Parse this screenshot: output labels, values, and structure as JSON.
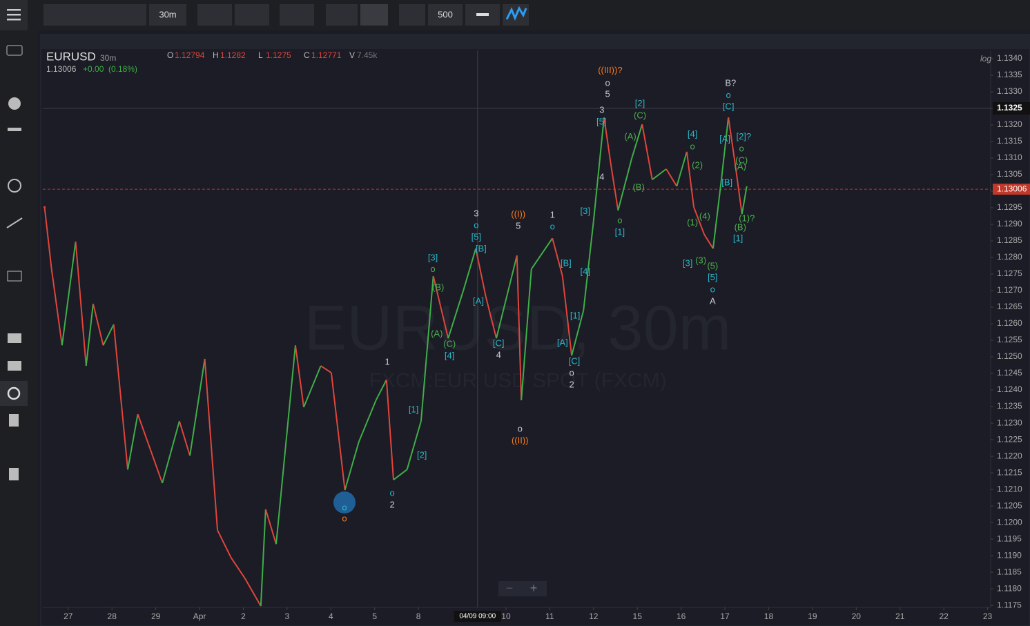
{
  "toolbar": {
    "interval": "30m",
    "bars": "500"
  },
  "chart_data": {
    "type": "line",
    "symbol": "EURUSD",
    "interval": "30m",
    "last_header": "1.13006",
    "change": "+0.00",
    "change_pct": "(0.18%)",
    "ohlcv": [
      {
        "key": "O",
        "value": "1.12794"
      },
      {
        "key": "H",
        "value": "1.1282"
      },
      {
        "key": "L",
        "value": "1.1275"
      },
      {
        "key": "C",
        "value": "1.12771"
      },
      {
        "key": "V",
        "value": "7.45k"
      }
    ],
    "watermark": "EURUSD, 30m",
    "watermark_sub": "FXCM:EUR USD SPOT (FXCM)",
    "scale_label": "log",
    "up_color": "#3fae49",
    "down_color": "#e0453c",
    "xlim": [
      -0.58,
      21.07
    ],
    "ylim": [
      1.11744,
      1.13425
    ],
    "xticks": [
      {
        "value": 0,
        "label": "27"
      },
      {
        "value": 1,
        "label": "28"
      },
      {
        "value": 2,
        "label": "29"
      },
      {
        "value": 3,
        "label": "Apr"
      },
      {
        "value": 4,
        "label": "2"
      },
      {
        "value": 5,
        "label": "3"
      },
      {
        "value": 6,
        "label": "4"
      },
      {
        "value": 7,
        "label": "5"
      },
      {
        "value": 8,
        "label": "8"
      },
      {
        "value": 10,
        "label": "10"
      },
      {
        "value": 11,
        "label": "11"
      },
      {
        "value": 12,
        "label": "12"
      },
      {
        "value": 13,
        "label": "15"
      },
      {
        "value": 14,
        "label": "16"
      },
      {
        "value": 15,
        "label": "17"
      },
      {
        "value": 16,
        "label": "18"
      },
      {
        "value": 17,
        "label": "19"
      },
      {
        "value": 18,
        "label": "20"
      },
      {
        "value": 19,
        "label": "21"
      },
      {
        "value": 20,
        "label": "22"
      },
      {
        "value": 21,
        "label": "23"
      }
    ],
    "yticks": [
      {
        "value": 1.134,
        "label": "1.1340"
      },
      1.1335,
      {
        "value": 1.133,
        "label": "1.1330"
      },
      1.1325,
      {
        "value": 1.132,
        "label": "1.1320"
      },
      1.1315,
      {
        "value": 1.131,
        "label": "1.1310"
      },
      1.1305,
      {
        "value": 1.13,
        "label": "1.1300"
      },
      1.1295,
      {
        "value": 1.129,
        "label": "1.1290"
      },
      1.1285,
      {
        "value": 1.128,
        "label": "1.1280"
      },
      1.1275,
      {
        "value": 1.127,
        "label": "1.1270"
      },
      1.1265,
      {
        "value": 1.126,
        "label": "1.1260"
      },
      1.1255,
      {
        "value": 1.125,
        "label": "1.1250"
      },
      1.1245,
      {
        "value": 1.124,
        "label": "1.1240"
      },
      1.1235,
      {
        "value": 1.123,
        "label": "1.1230"
      },
      1.1225,
      {
        "value": 1.122,
        "label": "1.1220"
      },
      1.1215,
      {
        "value": 1.121,
        "label": "1.1210"
      },
      1.1205,
      {
        "value": 1.12,
        "label": "1.1200"
      },
      1.1195,
      {
        "value": 1.119,
        "label": "1.1190"
      },
      1.1185,
      {
        "value": 1.118,
        "label": "1.1180"
      },
      1.1175
    ],
    "crosshair": {
      "x": 9.35,
      "x_label": "04/09 09:00",
      "y": {
        "value": 1.1325,
        "label": "1.1325"
      }
    },
    "last_price": 1.13006,
    "price": {
      "x": [
        -0.54,
        -0.38,
        -0.14,
        0.17,
        0.41,
        0.57,
        0.8,
        1.04,
        1.36,
        1.59,
        2.15,
        2.54,
        2.78,
        3.12,
        3.41,
        3.72,
        4.04,
        4.4,
        4.51,
        4.75,
        5.19,
        5.38,
        5.77,
        6.01,
        6.32,
        6.64,
        7.03,
        7.27,
        7.43,
        7.74,
        8.06,
        8.34,
        8.68,
        9.03,
        9.31,
        9.54,
        9.78,
        10.25,
        10.35,
        10.58,
        11.06,
        11.29,
        11.5,
        11.77,
        12.0,
        12.24,
        12.4,
        12.56,
        12.87,
        13.11,
        13.34,
        13.66,
        13.9,
        14.13,
        14.29,
        14.53,
        14.73,
        14.92,
        15.08,
        15.24,
        15.39,
        15.5
      ],
      "close": [
        1.12952,
        1.12765,
        1.12535,
        1.12848,
        1.12473,
        1.1266,
        1.12535,
        1.12598,
        1.1216,
        1.12327,
        1.12119,
        1.12306,
        1.12202,
        1.12494,
        1.11977,
        1.11894,
        1.11831,
        1.11748,
        1.1204,
        1.11935,
        1.12535,
        1.12348,
        1.12473,
        1.12452,
        1.12098,
        1.12244,
        1.12369,
        1.12431,
        1.12129,
        1.1216,
        1.12306,
        1.12744,
        1.12556,
        1.12702,
        1.12827,
        1.12681,
        1.12556,
        1.12806,
        1.12369,
        1.12765,
        1.12858,
        1.12744,
        1.12504,
        1.1264,
        1.1291,
        1.13223,
        1.13077,
        1.12942,
        1.13098,
        1.13202,
        1.13035,
        1.13067,
        1.13015,
        1.13119,
        1.12952,
        1.12869,
        1.12827,
        1.13035,
        1.13223,
        1.13077,
        1.12931,
        1.13015
      ]
    },
    "annotations": [
      {
        "text": "((III))?",
        "x": 12.38,
        "y": 1.13363,
        "color": "#ff7a1a"
      },
      {
        "text": "o",
        "x": 12.32,
        "y": 1.13325,
        "color": "#c8ccd8"
      },
      {
        "text": "5",
        "x": 12.32,
        "y": 1.13292,
        "color": "#c8ccd8"
      },
      {
        "text": "3",
        "x": 12.19,
        "y": 1.13244,
        "color": "#c8ccd8"
      },
      {
        "text": "[5]",
        "x": 12.18,
        "y": 1.13208,
        "color": "#2ab7c9"
      },
      {
        "text": "4",
        "x": 12.19,
        "y": 1.13042,
        "color": "#c8ccd8"
      },
      {
        "text": "[2]",
        "x": 13.06,
        "y": 1.13263,
        "color": "#2ab7c9"
      },
      {
        "text": "(C)",
        "x": 13.06,
        "y": 1.13227,
        "color": "#4cb050"
      },
      {
        "text": "(A)",
        "x": 12.84,
        "y": 1.13163,
        "color": "#4cb050"
      },
      {
        "text": "(B)",
        "x": 13.03,
        "y": 1.1301,
        "color": "#4cb050"
      },
      {
        "text": "o",
        "x": 12.6,
        "y": 1.1291,
        "color": "#4cb050"
      },
      {
        "text": "[1]",
        "x": 12.6,
        "y": 1.12875,
        "color": "#2ab7c9"
      },
      {
        "text": "B?",
        "x": 15.13,
        "y": 1.13325,
        "color": "#c8ccd8"
      },
      {
        "text": "o",
        "x": 15.08,
        "y": 1.13288,
        "color": "#2ab7c9"
      },
      {
        "text": "[C]",
        "x": 15.08,
        "y": 1.13254,
        "color": "#2ab7c9"
      },
      {
        "text": "[A]",
        "x": 15.0,
        "y": 1.13156,
        "color": "#2ab7c9"
      },
      {
        "text": "[2]?",
        "x": 15.43,
        "y": 1.13163,
        "color": "#2ab7c9"
      },
      {
        "text": "o",
        "x": 15.38,
        "y": 1.13127,
        "color": "#4cb050"
      },
      {
        "text": "(C)",
        "x": 15.38,
        "y": 1.13092,
        "color": "#4cb050"
      },
      {
        "text": "(A)",
        "x": 15.35,
        "y": 1.13073,
        "color": "#4cb050"
      },
      {
        "text": "[B]",
        "x": 15.05,
        "y": 1.13025,
        "color": "#2ab7c9"
      },
      {
        "text": "(1)?",
        "x": 15.5,
        "y": 1.12917,
        "color": "#4cb050"
      },
      {
        "text": "(B)",
        "x": 15.35,
        "y": 1.1289,
        "color": "#4cb050"
      },
      {
        "text": "[1]",
        "x": 15.3,
        "y": 1.12856,
        "color": "#2ab7c9"
      },
      {
        "text": "[4]",
        "x": 14.26,
        "y": 1.13171,
        "color": "#2ab7c9"
      },
      {
        "text": "o",
        "x": 14.26,
        "y": 1.13133,
        "color": "#4cb050"
      },
      {
        "text": "(2)",
        "x": 14.37,
        "y": 1.13077,
        "color": "#4cb050"
      },
      {
        "text": "(1)",
        "x": 14.26,
        "y": 1.12904,
        "color": "#4cb050"
      },
      {
        "text": "(4)",
        "x": 14.54,
        "y": 1.12923,
        "color": "#4cb050"
      },
      {
        "text": "[3]",
        "x": 14.15,
        "y": 1.12781,
        "color": "#2ab7c9"
      },
      {
        "text": "(3)",
        "x": 14.45,
        "y": 1.1279,
        "color": "#4cb050"
      },
      {
        "text": "(5)",
        "x": 14.72,
        "y": 1.12773,
        "color": "#4cb050"
      },
      {
        "text": "[5]",
        "x": 14.72,
        "y": 1.12738,
        "color": "#2ab7c9"
      },
      {
        "text": "o",
        "x": 14.72,
        "y": 1.12702,
        "color": "#2ab7c9"
      },
      {
        "text": "A",
        "x": 14.72,
        "y": 1.12667,
        "color": "#c8ccd8"
      },
      {
        "text": "[3]",
        "x": 11.81,
        "y": 1.12938,
        "color": "#2ab7c9"
      },
      {
        "text": "[4]",
        "x": 11.81,
        "y": 1.12756,
        "color": "#2ab7c9"
      },
      {
        "text": "[1]",
        "x": 11.58,
        "y": 1.12623,
        "color": "#2ab7c9"
      },
      {
        "text": "[A]",
        "x": 11.29,
        "y": 1.12542,
        "color": "#2ab7c9"
      },
      {
        "text": "[B]",
        "x": 11.37,
        "y": 1.12781,
        "color": "#2ab7c9"
      },
      {
        "text": "[C]",
        "x": 11.56,
        "y": 1.12485,
        "color": "#2ab7c9"
      },
      {
        "text": "o",
        "x": 11.5,
        "y": 1.1245,
        "color": "#c8ccd8"
      },
      {
        "text": "2",
        "x": 11.5,
        "y": 1.12415,
        "color": "#c8ccd8"
      },
      {
        "text": "1",
        "x": 11.06,
        "y": 1.12927,
        "color": "#c8ccd8"
      },
      {
        "text": "o",
        "x": 11.06,
        "y": 1.12892,
        "color": "#2ab7c9"
      },
      {
        "text": "((I))",
        "x": 10.28,
        "y": 1.12929,
        "color": "#ff7a1a"
      },
      {
        "text": "5",
        "x": 10.28,
        "y": 1.12894,
        "color": "#c8ccd8"
      },
      {
        "text": "o",
        "x": 10.32,
        "y": 1.12281,
        "color": "#c8ccd8"
      },
      {
        "text": "((II))",
        "x": 10.32,
        "y": 1.12246,
        "color": "#ff7a1a"
      },
      {
        "text": "3",
        "x": 9.32,
        "y": 1.12931,
        "color": "#c8ccd8"
      },
      {
        "text": "o",
        "x": 9.32,
        "y": 1.12896,
        "color": "#2ab7c9"
      },
      {
        "text": "[5]",
        "x": 9.32,
        "y": 1.1286,
        "color": "#2ab7c9"
      },
      {
        "text": "[B]",
        "x": 9.43,
        "y": 1.12825,
        "color": "#2ab7c9"
      },
      {
        "text": "[A]",
        "x": 9.37,
        "y": 1.12667,
        "color": "#2ab7c9"
      },
      {
        "text": "[C]",
        "x": 9.83,
        "y": 1.1254,
        "color": "#2ab7c9"
      },
      {
        "text": "4",
        "x": 9.83,
        "y": 1.12504,
        "color": "#c8ccd8"
      },
      {
        "text": "[3]",
        "x": 8.33,
        "y": 1.12798,
        "color": "#2ab7c9"
      },
      {
        "text": "o",
        "x": 8.33,
        "y": 1.12763,
        "color": "#4cb050"
      },
      {
        "text": "(B)",
        "x": 8.45,
        "y": 1.12708,
        "color": "#4cb050"
      },
      {
        "text": "(A)",
        "x": 8.42,
        "y": 1.12569,
        "color": "#4cb050"
      },
      {
        "text": "(C)",
        "x": 8.71,
        "y": 1.12538,
        "color": "#4cb050"
      },
      {
        "text": "[4]",
        "x": 8.71,
        "y": 1.12502,
        "color": "#2ab7c9"
      },
      {
        "text": "[1]",
        "x": 7.89,
        "y": 1.1234,
        "color": "#2ab7c9"
      },
      {
        "text": "[2]",
        "x": 8.08,
        "y": 1.12202,
        "color": "#2ab7c9"
      },
      {
        "text": "1",
        "x": 7.29,
        "y": 1.12483,
        "color": "#c8ccd8"
      },
      {
        "text": "o",
        "x": 7.4,
        "y": 1.12088,
        "color": "#2ab7c9"
      },
      {
        "text": "2",
        "x": 7.4,
        "y": 1.12052,
        "color": "#c8ccd8"
      },
      {
        "text": "o",
        "x": 6.31,
        "y": 1.12044,
        "color": "#2ab7c9"
      },
      {
        "text": "o",
        "x": 6.31,
        "y": 1.1201,
        "color": "#ff7a1a"
      }
    ]
  }
}
